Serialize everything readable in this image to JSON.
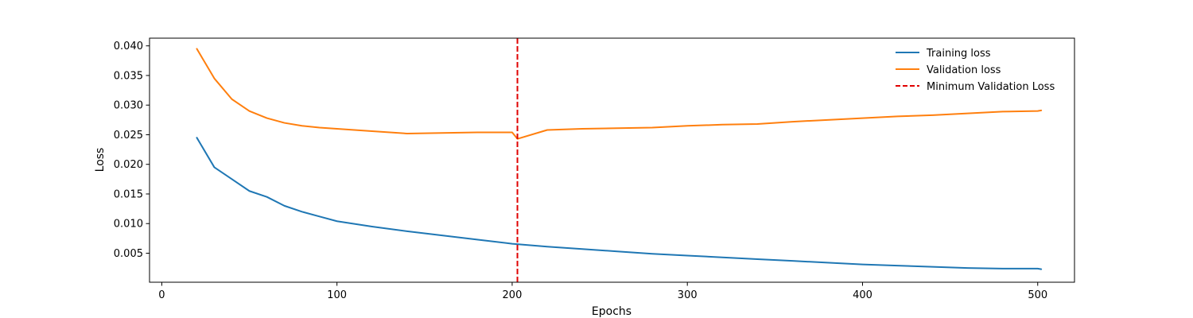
{
  "chart_data": {
    "type": "line",
    "title": "",
    "xlabel": "Epochs",
    "ylabel": "Loss",
    "xlim": [
      -7,
      521
    ],
    "ylim": [
      0.0001,
      0.0413
    ],
    "x_ticks": [
      0,
      100,
      200,
      300,
      400,
      500
    ],
    "y_ticks": [
      0.005,
      0.01,
      0.015,
      0.02,
      0.025,
      0.03,
      0.035,
      0.04
    ],
    "x_tick_labels": [
      "0",
      "100",
      "200",
      "300",
      "400",
      "500"
    ],
    "y_tick_labels": [
      "0.005",
      "0.010",
      "0.015",
      "0.020",
      "0.025",
      "0.030",
      "0.035",
      "0.040"
    ],
    "grid": false,
    "legend_position": "top-right",
    "series": [
      {
        "name": "Training loss",
        "color": "#1f77b4",
        "line_style": "solid",
        "x": [
          20,
          30,
          40,
          50,
          60,
          70,
          80,
          90,
          100,
          120,
          140,
          160,
          180,
          200,
          220,
          240,
          260,
          280,
          300,
          320,
          340,
          360,
          380,
          400,
          420,
          440,
          460,
          480,
          500,
          502
        ],
        "y": [
          0.0245,
          0.0195,
          0.0175,
          0.0155,
          0.0145,
          0.013,
          0.012,
          0.0112,
          0.0104,
          0.0095,
          0.0087,
          0.008,
          0.0073,
          0.0066,
          0.0061,
          0.0057,
          0.0053,
          0.0049,
          0.0046,
          0.0043,
          0.004,
          0.0037,
          0.0034,
          0.0031,
          0.0029,
          0.0027,
          0.0025,
          0.0024,
          0.0024,
          0.0023
        ]
      },
      {
        "name": "Validation loss",
        "color": "#ff7f0e",
        "line_style": "solid",
        "x": [
          20,
          25,
          30,
          40,
          50,
          60,
          70,
          80,
          90,
          100,
          120,
          140,
          160,
          180,
          200,
          203,
          220,
          240,
          260,
          280,
          300,
          320,
          340,
          360,
          380,
          400,
          420,
          440,
          460,
          480,
          500,
          502
        ],
        "y": [
          0.0395,
          0.037,
          0.0345,
          0.031,
          0.029,
          0.0278,
          0.027,
          0.0265,
          0.0262,
          0.026,
          0.0256,
          0.0252,
          0.0253,
          0.0254,
          0.0254,
          0.0243,
          0.0258,
          0.026,
          0.0261,
          0.0262,
          0.0265,
          0.0267,
          0.0268,
          0.0272,
          0.0275,
          0.0278,
          0.0281,
          0.0283,
          0.0286,
          0.0289,
          0.029,
          0.0291
        ]
      }
    ],
    "vlines": [
      {
        "name": "Minimum Validation Loss",
        "x": 203,
        "color": "#e00000",
        "line_style": "dashed"
      }
    ]
  }
}
